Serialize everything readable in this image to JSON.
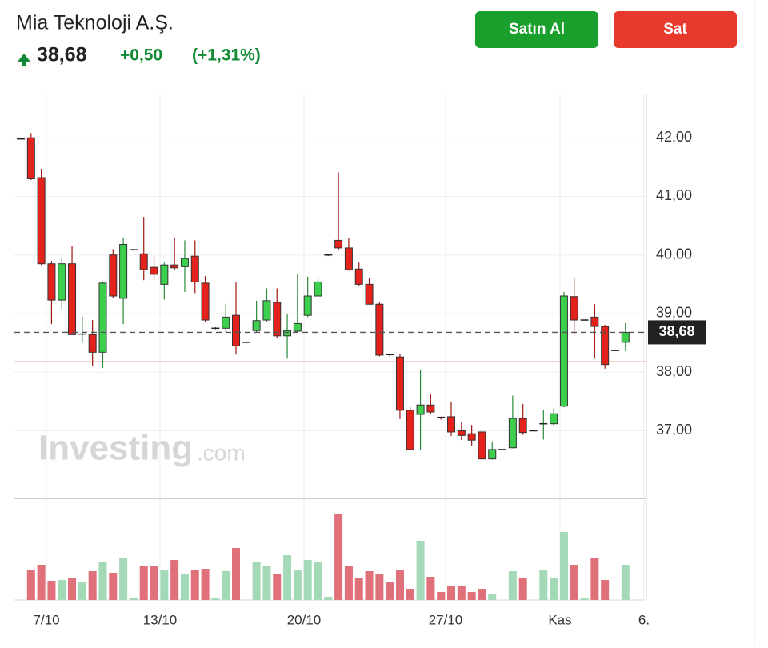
{
  "header": {
    "company": "Mia Teknoloji A.Ş.",
    "price": "38,68",
    "change": "+0,50",
    "change_pct": "(+1,31%)"
  },
  "buttons": {
    "buy": "Satın Al",
    "sell": "Sat"
  },
  "watermark": {
    "brand": "Investing",
    "suffix": ".com"
  },
  "chart_data": {
    "type": "candlestick",
    "x_labels": [
      "7/10",
      "13/10",
      "20/10",
      "27/10",
      "Kas",
      "6."
    ],
    "open": [
      41.98,
      42.0,
      41.32,
      39.85,
      39.23,
      39.85,
      38.65,
      38.64,
      38.34,
      40.0,
      39.26,
      40.09,
      40.02,
      39.79,
      39.5,
      39.83,
      39.8,
      39.98,
      39.52,
      38.75,
      38.75,
      38.97,
      38.51,
      38.71,
      38.89,
      39.19,
      38.62,
      38.7,
      38.97,
      39.3,
      40.0,
      40.25,
      40.12,
      39.76,
      39.5,
      39.16,
      38.3,
      38.26,
      37.35,
      37.28,
      37.44,
      37.23,
      37.24,
      37.0,
      36.95,
      36.98,
      36.52,
      36.68,
      36.71,
      37.21,
      37.0,
      37.12,
      37.12,
      37.42,
      39.29,
      38.89,
      38.94,
      38.78,
      38.37,
      38.51
    ],
    "high": [
      41.99,
      42.08,
      41.47,
      39.9,
      39.96,
      40.16,
      38.95,
      38.89,
      39.55,
      40.1,
      40.3,
      40.1,
      40.65,
      39.98,
      39.87,
      40.3,
      40.25,
      40.25,
      39.64,
      38.77,
      39.17,
      39.54,
      38.53,
      39.22,
      39.43,
      39.43,
      39.0,
      39.67,
      39.63,
      39.6,
      40.02,
      41.41,
      40.29,
      39.87,
      39.6,
      39.19,
      38.31,
      38.31,
      37.4,
      38.03,
      37.62,
      37.24,
      37.5,
      37.14,
      37.1,
      37.01,
      36.82,
      36.69,
      37.6,
      37.46,
      37.01,
      37.36,
      37.38,
      39.37,
      39.6,
      38.9,
      39.16,
      38.81,
      38.38,
      38.84
    ],
    "low": [
      41.97,
      41.28,
      39.83,
      38.82,
      39.08,
      38.64,
      38.5,
      38.1,
      38.07,
      39.27,
      38.82,
      40.07,
      39.57,
      39.57,
      39.24,
      39.74,
      39.37,
      39.35,
      38.86,
      38.73,
      38.68,
      38.3,
      38.49,
      38.68,
      38.86,
      38.58,
      38.23,
      38.68,
      38.94,
      39.35,
      39.98,
      40.08,
      39.73,
      39.47,
      39.16,
      38.27,
      38.27,
      37.2,
      36.68,
      36.67,
      37.28,
      37.19,
      36.91,
      36.84,
      36.75,
      36.5,
      36.51,
      36.67,
      36.7,
      36.93,
      36.99,
      36.85,
      37.09,
      37.4,
      38.65,
      38.88,
      38.23,
      38.06,
      38.36,
      38.36
    ],
    "close": [
      41.98,
      41.3,
      39.85,
      39.23,
      39.85,
      38.64,
      38.65,
      38.34,
      39.52,
      39.3,
      40.18,
      40.09,
      39.75,
      39.67,
      39.83,
      39.78,
      39.94,
      39.54,
      38.89,
      38.75,
      38.94,
      38.45,
      38.51,
      38.88,
      39.22,
      38.62,
      38.71,
      38.83,
      39.3,
      39.54,
      40.0,
      40.12,
      39.75,
      39.5,
      39.16,
      38.29,
      38.28,
      37.35,
      36.68,
      37.44,
      37.32,
      37.21,
      36.98,
      36.92,
      36.84,
      36.52,
      36.68,
      36.68,
      37.21,
      36.97,
      37.0,
      37.12,
      37.29,
      39.3,
      38.89,
      38.89,
      38.78,
      38.13,
      38.37,
      38.68
    ],
    "volume": [
      0,
      37,
      44,
      24,
      25,
      27,
      22,
      36,
      47,
      34,
      53,
      2,
      42,
      43,
      38,
      50,
      33,
      37,
      39,
      2,
      36,
      65,
      0,
      47,
      42,
      32,
      56,
      37,
      50,
      47,
      4,
      107,
      42,
      28,
      36,
      32,
      22,
      38,
      14,
      74,
      29,
      10,
      17,
      17,
      10,
      14,
      7,
      0,
      36,
      27,
      0,
      38,
      28,
      85,
      44,
      3,
      52,
      25,
      0,
      44
    ],
    "ylim": [
      35.86,
      42.74
    ],
    "yticks": [
      {
        "value": 37,
        "label": "37,00"
      },
      {
        "value": 38,
        "label": "38,00"
      },
      {
        "value": 39,
        "label": "39,00"
      },
      {
        "value": 40,
        "label": "40,00"
      },
      {
        "value": 41,
        "label": "41,00"
      },
      {
        "value": 42,
        "label": "42,00"
      }
    ],
    "last_price": {
      "value": 38.68,
      "label": "38,68"
    },
    "reference_line": 38.18,
    "up_color": "#3ccf4e",
    "down_color": "#e3221c",
    "volume_up_color": "#a3d9b6",
    "volume_down_color": "#e0707a",
    "grid": true
  }
}
